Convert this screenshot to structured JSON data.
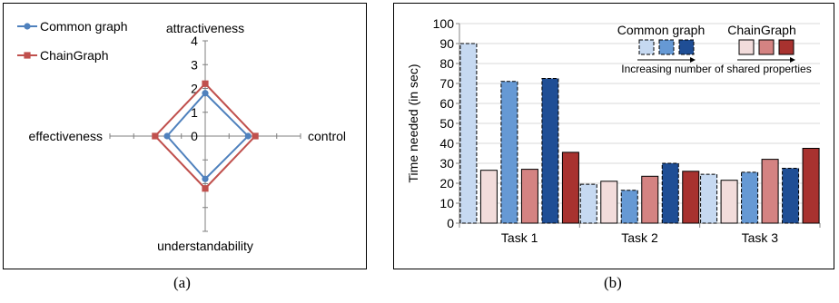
{
  "captions": {
    "a": "(a)",
    "b": "(b)"
  },
  "colors": {
    "common": "#4f81bd",
    "chain": "#c0504d",
    "common_bars": [
      "#c6d9f1",
      "#6699d4",
      "#1f4e95"
    ],
    "chain_bars": [
      "#f2dcdb",
      "#d48382",
      "#a8322f"
    ]
  },
  "chart_data": [
    {
      "type": "radar",
      "axes": [
        "attractiveness",
        "control",
        "understandability",
        "effectiveness"
      ],
      "radial_ticks": [
        "0",
        "1",
        "2",
        "3",
        "4"
      ],
      "rmax": 4,
      "legend_position": "top-left",
      "series": [
        {
          "name": "Common graph",
          "values": [
            1.8,
            1.8,
            1.8,
            1.6
          ]
        },
        {
          "name": "ChainGraph",
          "values": [
            2.2,
            2.1,
            2.2,
            2.1
          ]
        }
      ]
    },
    {
      "type": "bar",
      "categories": [
        "Task 1",
        "Task 2",
        "Task 3"
      ],
      "ylabel": "Time needed (in sec)",
      "ylim": [
        0,
        100
      ],
      "yticks": [
        "0",
        "10",
        "20",
        "30",
        "40",
        "50",
        "60",
        "70",
        "80",
        "90",
        "100"
      ],
      "grid": true,
      "legend": {
        "common_label": "Common graph",
        "chain_label": "ChainGraph",
        "arrow_label": "Increasing number of shared properties"
      },
      "series": [
        {
          "group": "common",
          "level": 1,
          "values": [
            90,
            19.5,
            24.5
          ]
        },
        {
          "group": "chain",
          "level": 1,
          "values": [
            26.5,
            21,
            21.5
          ]
        },
        {
          "group": "common",
          "level": 2,
          "values": [
            71,
            16.5,
            25.5
          ]
        },
        {
          "group": "chain",
          "level": 2,
          "values": [
            27,
            23.5,
            32
          ]
        },
        {
          "group": "common",
          "level": 3,
          "values": [
            72.5,
            30,
            27.5
          ]
        },
        {
          "group": "chain",
          "level": 3,
          "values": [
            35.5,
            26,
            37.5
          ]
        }
      ]
    }
  ]
}
